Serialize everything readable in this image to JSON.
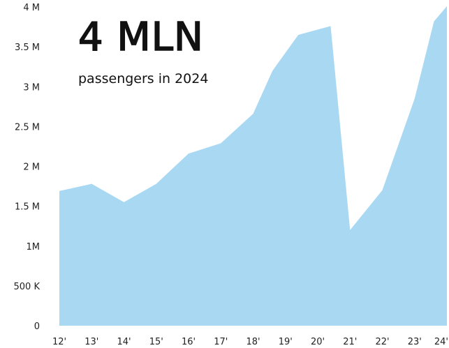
{
  "headline": "4 MLN",
  "subheadline": "passengers in 2024",
  "colors": {
    "area_fill": "#a9d8f2",
    "text": "#111111"
  },
  "chart_data": {
    "type": "area",
    "title": "",
    "xlabel": "",
    "ylabel": "",
    "categories": [
      "12'",
      "13'",
      "14'",
      "15'",
      "16'",
      "17'",
      "18'",
      "19'",
      "20'",
      "21'",
      "22'",
      "23'",
      "24'"
    ],
    "y_ticks": [
      "0",
      "500 K",
      "1M",
      "1.5 M",
      "2 M",
      "2.5 M",
      "3 M",
      "3.5 M",
      "4 M"
    ],
    "ylim": [
      0,
      4000000
    ],
    "grid": false,
    "legend": "none",
    "points": [
      {
        "x": 12.0,
        "y": 1690000
      },
      {
        "x": 13.0,
        "y": 1780000
      },
      {
        "x": 14.0,
        "y": 1550000
      },
      {
        "x": 15.0,
        "y": 1780000
      },
      {
        "x": 16.0,
        "y": 2160000
      },
      {
        "x": 17.0,
        "y": 2290000
      },
      {
        "x": 18.0,
        "y": 2660000
      },
      {
        "x": 18.6,
        "y": 3200000
      },
      {
        "x": 19.4,
        "y": 3650000
      },
      {
        "x": 20.4,
        "y": 3760000
      },
      {
        "x": 21.0,
        "y": 1200000
      },
      {
        "x": 22.0,
        "y": 1700000
      },
      {
        "x": 23.0,
        "y": 2850000
      },
      {
        "x": 23.6,
        "y": 3820000
      },
      {
        "x": 24.0,
        "y": 4010000
      }
    ]
  }
}
